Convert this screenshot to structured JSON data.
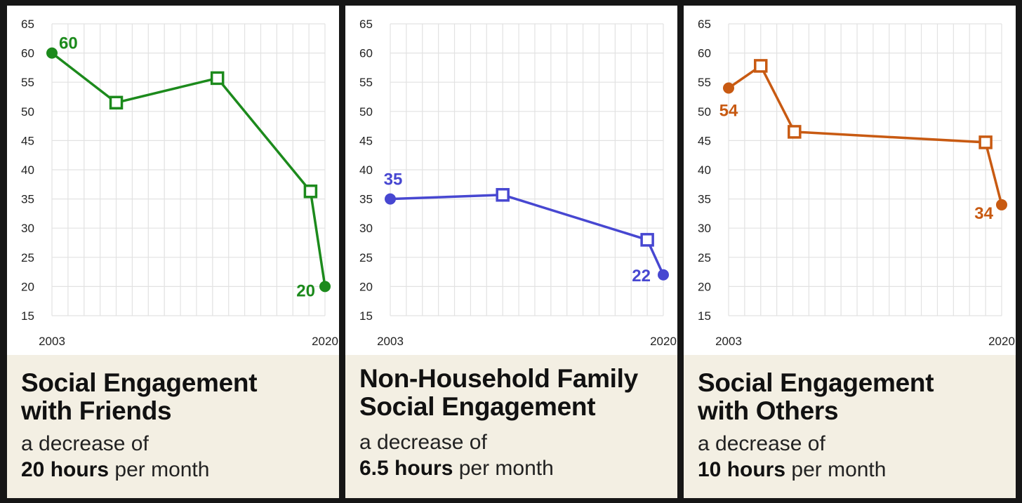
{
  "colors": {
    "friends": "#1c8a1c",
    "family": "#4747d1",
    "others": "#c85a12",
    "caption_bg": "#f3efe3"
  },
  "panels": [
    {
      "title_line1": "Social Engagement",
      "title_line2": "with Friends",
      "desc_prefix": "a decrease of",
      "amount": "20 hours",
      "desc_suffix": " per month"
    },
    {
      "title_line1": "Non-Household Family",
      "title_line2": "Social Engagement",
      "desc_prefix": "a decrease of",
      "amount": "6.5 hours",
      "desc_suffix": " per month"
    },
    {
      "title_line1": "Social Engagement",
      "title_line2": "with Others",
      "desc_prefix": "a decrease of",
      "amount": "10 hours",
      "desc_suffix": " per month"
    }
  ],
  "chart_data": [
    {
      "type": "line",
      "title": "Social Engagement with Friends",
      "xlim": [
        2003,
        2020
      ],
      "ylim": [
        15,
        65
      ],
      "yticks": [
        15,
        20,
        25,
        30,
        35,
        40,
        45,
        50,
        55,
        60,
        65
      ],
      "xtick_labels": [
        "2003",
        "2020"
      ],
      "grid": true,
      "color": "#1c8a1c",
      "points": [
        {
          "x": 2003,
          "y": 60,
          "marker": "dot",
          "label": "60"
        },
        {
          "x": 2007,
          "y": 51.5,
          "marker": "square"
        },
        {
          "x": 2013.3,
          "y": 55.7,
          "marker": "square"
        },
        {
          "x": 2019.1,
          "y": 36.3,
          "marker": "square"
        },
        {
          "x": 2020,
          "y": 20,
          "marker": "dot",
          "label": "20"
        }
      ]
    },
    {
      "type": "line",
      "title": "Non-Household Family Social Engagement",
      "xlim": [
        2003,
        2020
      ],
      "ylim": [
        15,
        65
      ],
      "yticks": [
        15,
        20,
        25,
        30,
        35,
        40,
        45,
        50,
        55,
        60,
        65
      ],
      "xtick_labels": [
        "2003",
        "2020"
      ],
      "grid": true,
      "color": "#4747d1",
      "points": [
        {
          "x": 2003,
          "y": 35,
          "marker": "dot",
          "label": "35"
        },
        {
          "x": 2010,
          "y": 35.7,
          "marker": "square"
        },
        {
          "x": 2019,
          "y": 28,
          "marker": "square"
        },
        {
          "x": 2020,
          "y": 22,
          "marker": "dot",
          "label": "22"
        }
      ]
    },
    {
      "type": "line",
      "title": "Social Engagement with Others",
      "xlim": [
        2003,
        2020
      ],
      "ylim": [
        15,
        65
      ],
      "yticks": [
        15,
        20,
        25,
        30,
        35,
        40,
        45,
        50,
        55,
        60,
        65
      ],
      "xtick_labels": [
        "2003",
        "2020"
      ],
      "grid": true,
      "color": "#c85a12",
      "points": [
        {
          "x": 2003,
          "y": 54,
          "marker": "dot",
          "label": "54"
        },
        {
          "x": 2005,
          "y": 57.8,
          "marker": "square"
        },
        {
          "x": 2007.1,
          "y": 46.5,
          "marker": "square"
        },
        {
          "x": 2019,
          "y": 44.7,
          "marker": "square"
        },
        {
          "x": 2020,
          "y": 34,
          "marker": "dot",
          "label": "34"
        }
      ]
    }
  ]
}
